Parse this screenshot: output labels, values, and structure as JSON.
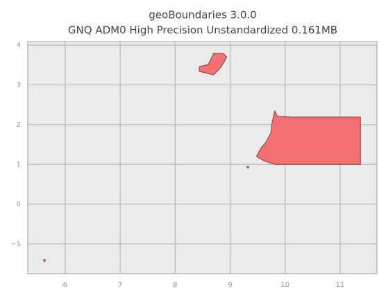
{
  "chart_data": {
    "type": "map",
    "title": "geoBoundaries 3.0.0",
    "subtitle": "GNQ ADM0 High Precision Unstandardized 0.161MB",
    "xlim": [
      5.32,
      11.67
    ],
    "ylim": [
      -1.75,
      4.09
    ],
    "xticks": [
      6,
      7,
      8,
      9,
      10,
      11
    ],
    "yticks": [
      {
        "value": -1,
        "label": "−1"
      },
      0,
      1,
      2,
      3,
      4
    ],
    "grid": true,
    "color": "#f46a6a",
    "shapes": [
      {
        "x": [
          8.44,
          8.6,
          8.7,
          8.88,
          8.94,
          8.83,
          8.7,
          8.44
        ],
        "y": [
          3.46,
          3.51,
          3.79,
          3.79,
          3.7,
          3.44,
          3.25,
          3.34
        ]
      },
      {
        "x": [
          9.81,
          9.86,
          10.12,
          11.37,
          11.37,
          9.81,
          9.61,
          9.48,
          9.55,
          9.65,
          9.74,
          9.76
        ],
        "y": [
          2.34,
          2.21,
          2.19,
          2.19,
          1.0,
          1.0,
          1.09,
          1.2,
          1.39,
          1.56,
          1.79,
          2.03
        ]
      },
      {
        "x": [
          9.3,
          9.34,
          9.33
        ],
        "y": [
          0.94,
          0.94,
          0.9
        ]
      },
      {
        "x": [
          5.6,
          5.64,
          5.63
        ],
        "y": [
          -1.4,
          -1.4,
          -1.45
        ]
      }
    ]
  }
}
